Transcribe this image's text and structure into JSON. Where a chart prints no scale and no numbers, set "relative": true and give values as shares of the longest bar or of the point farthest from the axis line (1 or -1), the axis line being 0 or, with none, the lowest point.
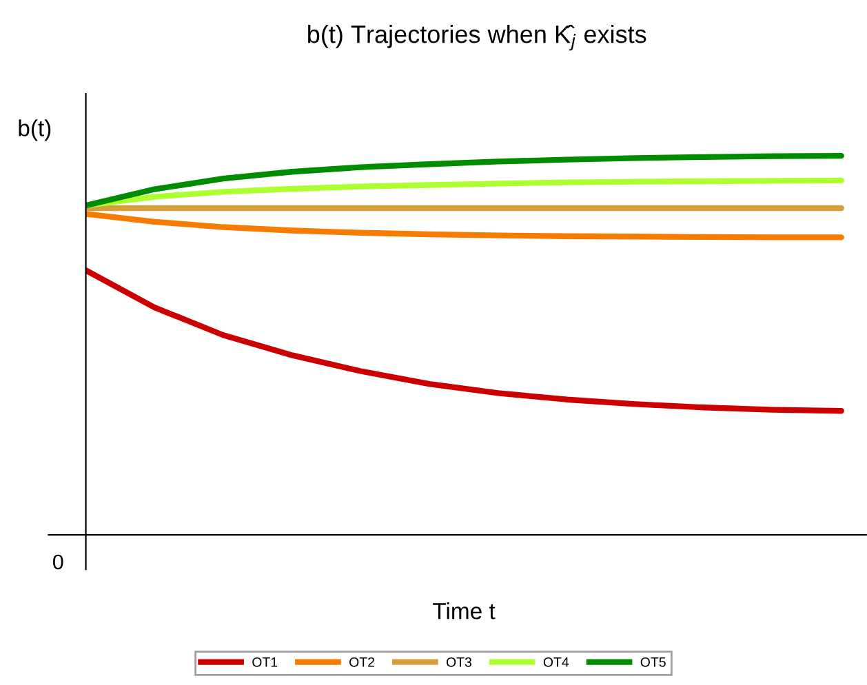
{
  "chart_data": {
    "type": "line",
    "title": "b(t) Trajectories when K̂$_{j}$ exists",
    "xlabel": "Time t",
    "ylabel": "b(t)",
    "relative": true,
    "categories": [
      null,
      null,
      null,
      null,
      null,
      null,
      null,
      null,
      null,
      null,
      null,
      null
    ],
    "annotations": [
      "0"
    ],
    "series": [
      {
        "name": "OT1",
        "color": "#cc0000",
        "values": [
          0.698,
          0.6,
          0.527,
          0.474,
          0.432,
          0.398,
          0.374,
          0.357,
          0.345,
          0.336,
          0.33,
          0.327
        ]
      },
      {
        "name": "OT2",
        "color": "#f57c00",
        "values": [
          0.847,
          0.826,
          0.812,
          0.803,
          0.797,
          0.793,
          0.79,
          0.788,
          0.787,
          0.786,
          0.785,
          0.785
        ]
      },
      {
        "name": "OT3",
        "color": "#d4a03c",
        "values": [
          0.862,
          0.862,
          0.862,
          0.862,
          0.862,
          0.862,
          0.862,
          0.862,
          0.862,
          0.862,
          0.862,
          0.862
        ]
      },
      {
        "name": "OT4",
        "color": "#adff2f",
        "values": [
          0.869,
          0.892,
          0.905,
          0.913,
          0.919,
          0.923,
          0.927,
          0.93,
          0.932,
          0.933,
          0.934,
          0.935
        ]
      },
      {
        "name": "OT5",
        "color": "#008c00",
        "values": [
          0.869,
          0.912,
          0.94,
          0.958,
          0.97,
          0.978,
          0.985,
          0.99,
          0.994,
          0.997,
          0.999,
          1.0
        ]
      }
    ],
    "legend": "bottom",
    "marker": "none",
    "line_style": "solid"
  }
}
